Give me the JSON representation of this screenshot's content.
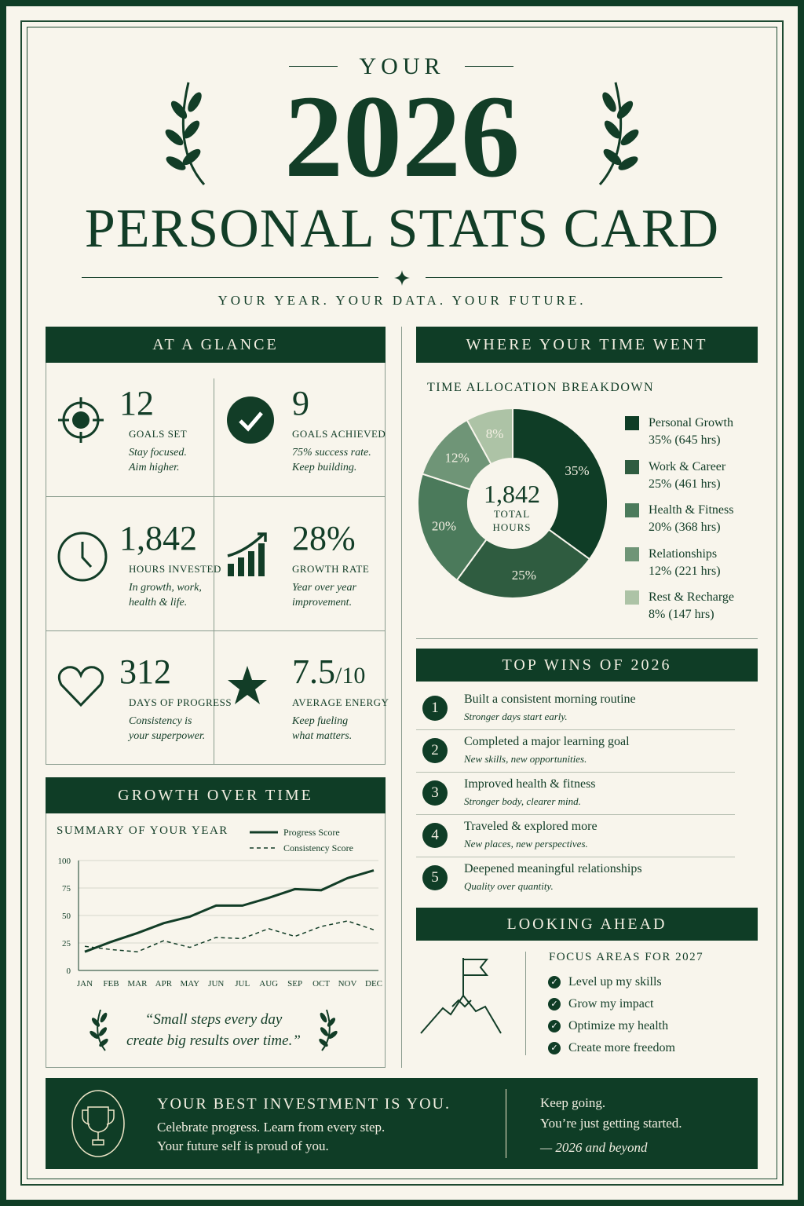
{
  "header": {
    "kicker": "YOUR",
    "year": "2026",
    "title": "PERSONAL STATS CARD",
    "tagline": "YOUR YEAR. YOUR DATA. YOUR FUTURE."
  },
  "colors": {
    "primary": "#0f3d26",
    "background": "#f8f5ec",
    "slices": [
      "#0f3d26",
      "#2f5c40",
      "#4b7a5b",
      "#6f9577",
      "#adc3a6"
    ]
  },
  "glance": {
    "title": "AT A GLANCE",
    "stats": [
      {
        "icon": "target-icon",
        "value": "12",
        "label": "GOALS SET",
        "note1": "Stay focused.",
        "note2": "Aim higher."
      },
      {
        "icon": "check-circle-icon",
        "value": "9",
        "label": "GOALS ACHIEVED",
        "note1": "75% success rate.",
        "note2": "Keep building."
      },
      {
        "icon": "clock-icon",
        "value": "1,842",
        "label": "HOURS INVESTED",
        "note1": "In growth, work,",
        "note2": "health & life."
      },
      {
        "icon": "growth-chart-icon",
        "value": "28%",
        "label": "GROWTH RATE",
        "note1": "Year over year",
        "note2": "improvement."
      },
      {
        "icon": "heart-icon",
        "value": "312",
        "label": "DAYS OF PROGRESS",
        "note1": "Consistency is",
        "note2": "your superpower."
      },
      {
        "icon": "star-icon",
        "value": "7.5",
        "value_suffix": "/10",
        "label": "AVERAGE ENERGY",
        "note1": "Keep fueling",
        "note2": "what matters."
      }
    ]
  },
  "growth": {
    "title": "GROWTH OVER TIME",
    "quote1": "“Small steps every day",
    "quote2": "create big results over time.”"
  },
  "chart_data": [
    {
      "type": "line",
      "title": "SUMMARY OF YOUR YEAR",
      "categories": [
        "JAN",
        "FEB",
        "MAR",
        "APR",
        "MAY",
        "JUN",
        "JUL",
        "AUG",
        "SEP",
        "OCT",
        "NOV",
        "DEC"
      ],
      "series": [
        {
          "name": "Progress Score",
          "style": "solid",
          "values": [
            17,
            26,
            34,
            43,
            49,
            59,
            59,
            66,
            74,
            73,
            84,
            91
          ]
        },
        {
          "name": "Consistency Score",
          "style": "dashed",
          "values": [
            22,
            19,
            17,
            27,
            21,
            30,
            29,
            38,
            31,
            40,
            45,
            37
          ]
        }
      ],
      "ylim": [
        0,
        100
      ],
      "yticks": [
        0,
        25,
        50,
        75,
        100
      ],
      "grid": true,
      "legend": "top-right"
    },
    {
      "type": "pie",
      "donut": true,
      "title": "TIME ALLOCATION BREAKDOWN",
      "center_value": "1,842",
      "center_label1": "TOTAL",
      "center_label2": "HOURS",
      "slices": [
        {
          "name": "Personal Growth",
          "percent": 35,
          "hours": 645,
          "label": "35%",
          "legend": "35% (645 hrs)"
        },
        {
          "name": "Work & Career",
          "percent": 25,
          "hours": 461,
          "label": "25%",
          "legend": "25% (461 hrs)"
        },
        {
          "name": "Health & Fitness",
          "percent": 20,
          "hours": 368,
          "label": "20%",
          "legend": "20% (368 hrs)"
        },
        {
          "name": "Relationships",
          "percent": 12,
          "hours": 221,
          "label": "12%",
          "legend": "12% (221 hrs)"
        },
        {
          "name": "Rest & Recharge",
          "percent": 8,
          "hours": 147,
          "label": "8%",
          "legend": "8% (147 hrs)"
        }
      ]
    }
  ],
  "time": {
    "title": "WHERE YOUR TIME WENT"
  },
  "wins": {
    "title": "TOP WINS OF 2026",
    "items": [
      {
        "n": "1",
        "title": "Built a consistent morning routine",
        "sub": "Stronger days start early."
      },
      {
        "n": "2",
        "title": "Completed a major learning goal",
        "sub": "New skills, new opportunities."
      },
      {
        "n": "3",
        "title": "Improved health & fitness",
        "sub": "Stronger body, clearer mind."
      },
      {
        "n": "4",
        "title": "Traveled & explored more",
        "sub": "New places, new perspectives."
      },
      {
        "n": "5",
        "title": "Deepened meaningful relationships",
        "sub": "Quality over quantity."
      }
    ]
  },
  "ahead": {
    "title": "LOOKING AHEAD",
    "subtitle": "FOCUS AREAS FOR 2027",
    "items": [
      "Level up my skills",
      "Grow my impact",
      "Optimize my health",
      "Create more freedom"
    ]
  },
  "footer": {
    "headline": "YOUR BEST INVESTMENT IS YOU.",
    "line1": "Celebrate progress. Learn from every step.",
    "line2": "Your future self is proud of you.",
    "right1": "Keep going.",
    "right2": "You’re just getting started.",
    "sign": "— 2026 and beyond"
  }
}
